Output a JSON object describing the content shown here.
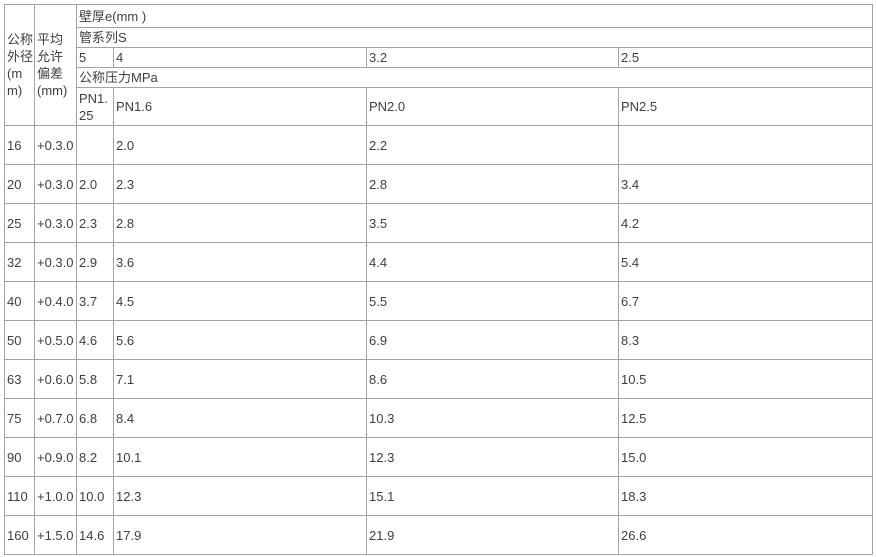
{
  "colors": {
    "border": "#a3a3a3",
    "text": "#3e3e3e",
    "background": "#ffffff"
  },
  "table": {
    "header": {
      "outer_diameter_label": "公称外径(mm)",
      "deviation_label": "平均允许偏差(mm)",
      "wall_thickness_label": "壁厚e(mm )",
      "pipe_series_label": "管系列S",
      "series_values": [
        "5",
        "4",
        "3.2",
        "2.5"
      ],
      "pressure_label": "公称压力MPa",
      "pressure_values": [
        "PN1.25",
        "PN1.6",
        "PN2.0",
        "PN2.5"
      ]
    },
    "rows": [
      {
        "dn": "16",
        "dev": "+0.3.0",
        "values": [
          "",
          "2.0",
          "2.2",
          ""
        ]
      },
      {
        "dn": "20",
        "dev": "+0.3.0",
        "values": [
          "2.0",
          "2.3",
          "2.8",
          "3.4"
        ]
      },
      {
        "dn": "25",
        "dev": "+0.3.0",
        "values": [
          "2.3",
          "2.8",
          "3.5",
          "4.2"
        ]
      },
      {
        "dn": "32",
        "dev": "+0.3.0",
        "values": [
          "2.9",
          "3.6",
          "4.4",
          "5.4"
        ]
      },
      {
        "dn": "40",
        "dev": "+0.4.0",
        "values": [
          "3.7",
          "4.5",
          "5.5",
          "6.7"
        ]
      },
      {
        "dn": "50",
        "dev": "+0.5.0",
        "values": [
          "4.6",
          "5.6",
          "6.9",
          "8.3"
        ]
      },
      {
        "dn": "63",
        "dev": "+0.6.0",
        "values": [
          "5.8",
          "7.1",
          "8.6",
          "10.5"
        ]
      },
      {
        "dn": "75",
        "dev": "+0.7.0",
        "values": [
          "6.8",
          "8.4",
          "10.3",
          "12.5"
        ]
      },
      {
        "dn": "90",
        "dev": "+0.9.0",
        "values": [
          "8.2",
          "10.1",
          "12.3",
          "15.0"
        ]
      },
      {
        "dn": "110",
        "dev": "+1.0.0",
        "values": [
          "10.0",
          "12.3",
          "15.1",
          "18.3"
        ]
      },
      {
        "dn": "160",
        "dev": "+1.5.0",
        "values": [
          "14.6",
          "17.9",
          "21.9",
          "26.6"
        ]
      }
    ]
  }
}
